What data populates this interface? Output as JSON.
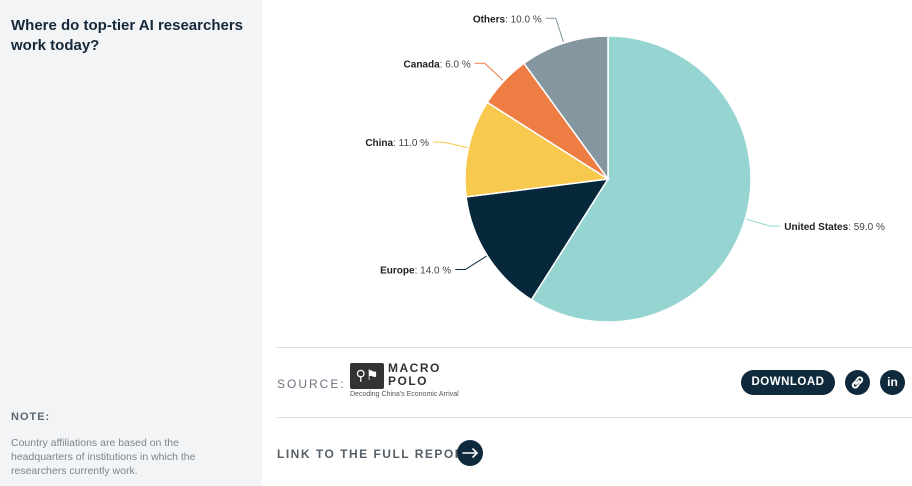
{
  "sidebar": {
    "title": "Where do top-tier AI researchers work today?",
    "note_label": "NOTE:",
    "note_text": "Country affiliations are based on the headquarters of institutions in which the researchers currently work."
  },
  "chart_data": {
    "type": "pie",
    "title": "",
    "slices": [
      {
        "label": "United States",
        "value": 59.0,
        "color": "#96d4d2"
      },
      {
        "label": "Europe",
        "value": 14.0,
        "color": "#07283b"
      },
      {
        "label": "China",
        "value": 11.0,
        "color": "#f8c94f"
      },
      {
        "label": "Canada",
        "value": 6.0,
        "color": "#ee7d44"
      },
      {
        "label": "Others",
        "value": 10.0,
        "color": "#84969f"
      }
    ],
    "value_suffix": " %",
    "label_separator": ": ",
    "start": "top",
    "direction": "clockwise"
  },
  "footer": {
    "source_label": "SOURCE:",
    "logo_name_line1": "MACRO",
    "logo_name_line2": "POLO",
    "logo_tagline": "Decoding China's Economic Arrival",
    "download_label": "DOWNLOAD",
    "link_icon": "link-icon",
    "linkedin_label": "in",
    "report_link_label": "LINK TO THE FULL REPORT"
  }
}
